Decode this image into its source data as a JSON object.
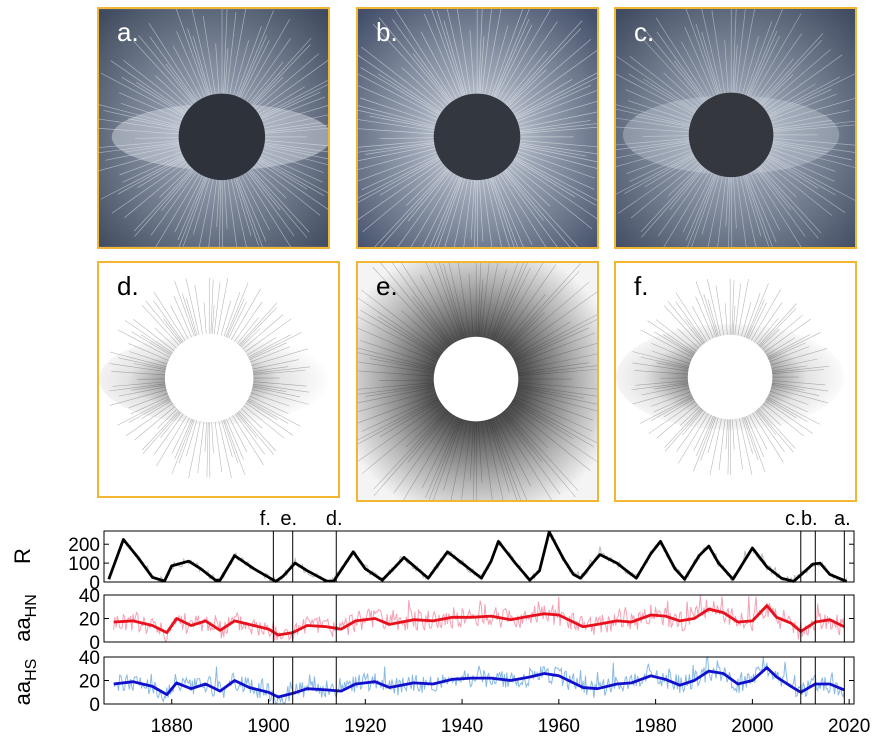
{
  "panels": [
    {
      "label": "a.",
      "style": "dark"
    },
    {
      "label": "b.",
      "style": "dark"
    },
    {
      "label": "c.",
      "style": "dark"
    },
    {
      "label": "d.",
      "style": "light"
    },
    {
      "label": "e.",
      "style": "light"
    },
    {
      "label": "f.",
      "style": "light"
    }
  ],
  "colors": {
    "panel_border": "#f2b632",
    "dark_sky": "#4f5a6d",
    "r_series": "#000000",
    "aaHN_series": "#e8101c",
    "aaHS_series": "#1010cc"
  },
  "chart_data": [
    {
      "type": "line",
      "ylabel": "R",
      "ylim": [
        0,
        270
      ],
      "yticks": [
        0,
        100,
        200
      ],
      "xlim": [
        1866,
        2021
      ],
      "markers": [
        {
          "label": "f.",
          "x": 1901
        },
        {
          "label": "e.",
          "x": 1905
        },
        {
          "label": "d.",
          "x": 1914
        },
        {
          "label": "c.",
          "x": 2010
        },
        {
          "label": "b.",
          "x": 2013
        },
        {
          "label": "a.",
          "x": 2019
        }
      ],
      "series": [
        {
          "color": "#000000",
          "x": [
            1867,
            1870,
            1873,
            1876,
            1878.5,
            1880,
            1883.5,
            1886,
            1889,
            1890,
            1893,
            1897,
            1901.5,
            1903,
            1905.5,
            1908,
            1912,
            1913.5,
            1917.5,
            1920,
            1923.5,
            1926,
            1928,
            1933,
            1937,
            1940,
            1944,
            1946,
            1947.5,
            1951,
            1954,
            1956,
            1958,
            1961,
            1963,
            1964.5,
            1967,
            1968.5,
            1972,
            1974,
            1976,
            1979,
            1981,
            1984,
            1986,
            1989,
            1991,
            1993,
            1996,
            2000,
            2003,
            2006,
            2008.5,
            2011,
            2012.5,
            2014,
            2016,
            2019.5
          ],
          "y": [
            15,
            225,
            130,
            25,
            5,
            85,
            110,
            70,
            10,
            10,
            140,
            70,
            3,
            30,
            100,
            60,
            5,
            5,
            160,
            70,
            10,
            75,
            130,
            20,
            160,
            100,
            20,
            110,
            215,
            100,
            10,
            60,
            265,
            120,
            40,
            20,
            100,
            145,
            100,
            60,
            20,
            150,
            215,
            70,
            15,
            140,
            190,
            100,
            15,
            180,
            80,
            20,
            3,
            60,
            95,
            100,
            40,
            3
          ]
        }
      ]
    },
    {
      "type": "line",
      "ylabel": "aa_HN",
      "ylim": [
        0,
        40
      ],
      "yticks": [
        0,
        20,
        40
      ],
      "xlim": [
        1866,
        2021
      ],
      "series": [
        {
          "color": "#e8101c",
          "x": [
            1868,
            1872,
            1876,
            1879,
            1881,
            1884,
            1887,
            1890,
            1893,
            1896,
            1900,
            1902,
            1905,
            1908,
            1912,
            1915,
            1918,
            1922,
            1925,
            1930,
            1934,
            1938,
            1942,
            1946,
            1950,
            1954,
            1957,
            1960,
            1965,
            1968,
            1972,
            1975,
            1979,
            1982,
            1985,
            1988,
            1991,
            1994,
            1997,
            2000,
            2003,
            2005,
            2008,
            2010,
            2013,
            2016,
            2019
          ],
          "y": [
            17,
            18,
            14,
            8,
            20,
            14,
            18,
            10,
            18,
            15,
            11,
            6,
            8,
            14,
            13,
            11,
            18,
            20,
            15,
            19,
            18,
            21,
            21,
            22,
            19,
            22,
            24,
            23,
            13,
            15,
            18,
            17,
            23,
            22,
            18,
            20,
            28,
            25,
            17,
            18,
            31,
            21,
            16,
            9,
            17,
            19,
            13
          ]
        }
      ]
    },
    {
      "type": "line",
      "ylabel": "aa_HS",
      "ylim": [
        0,
        40
      ],
      "yticks": [
        0,
        20,
        40
      ],
      "xlim": [
        1866,
        2021
      ],
      "xticks": [
        1880,
        1900,
        1920,
        1940,
        1960,
        1980,
        2000,
        2020
      ],
      "series": [
        {
          "color": "#1010cc",
          "x": [
            1868,
            1872,
            1876,
            1879,
            1881,
            1884,
            1887,
            1890,
            1893,
            1896,
            1900,
            1902,
            1905,
            1908,
            1912,
            1915,
            1918,
            1922,
            1925,
            1930,
            1934,
            1938,
            1942,
            1946,
            1950,
            1954,
            1957,
            1960,
            1965,
            1968,
            1972,
            1975,
            1979,
            1982,
            1985,
            1988,
            1991,
            1994,
            1997,
            2000,
            2003,
            2005,
            2008,
            2010,
            2013,
            2016,
            2019
          ],
          "y": [
            17,
            19,
            15,
            8,
            18,
            13,
            17,
            11,
            20,
            14,
            10,
            6,
            9,
            13,
            12,
            11,
            17,
            19,
            14,
            18,
            17,
            21,
            22,
            22,
            20,
            23,
            26,
            24,
            14,
            13,
            17,
            18,
            24,
            21,
            16,
            20,
            28,
            26,
            17,
            20,
            31,
            23,
            15,
            10,
            17,
            17,
            12
          ]
        }
      ]
    }
  ]
}
